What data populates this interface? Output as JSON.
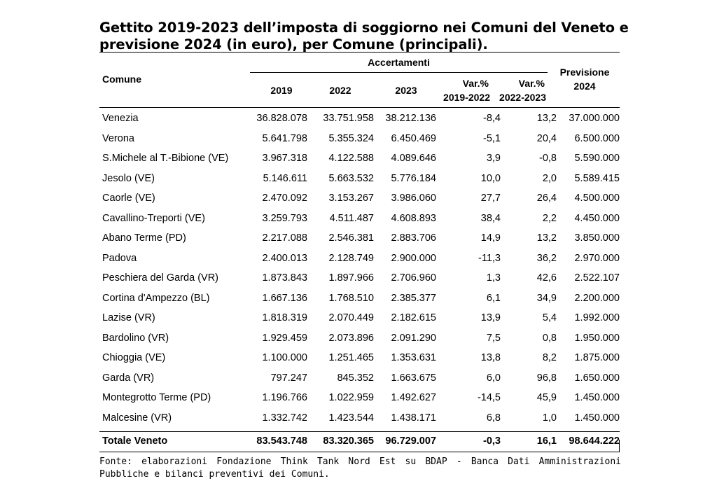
{
  "title": {
    "line1": "Gettito 2019-2023 dell’imposta di soggiorno nei Comuni del Veneto e",
    "line2": "previsione 2024 (in euro), per Comune (principali)."
  },
  "headers": {
    "comune": "Comune",
    "accertamenti": "Accertamenti",
    "y2019": "2019",
    "y2022": "2022",
    "y2023": "2023",
    "var1_line1": "Var.%",
    "var1_line2": "2019-2022",
    "var2_line1": "Var.%",
    "var2_line2": "2022-2023",
    "prev_line1": "Previsione",
    "prev_line2": "2024"
  },
  "rows": [
    {
      "comune": "Venezia",
      "y2019": "36.828.078",
      "y2022": "33.751.958",
      "y2023": "38.212.136",
      "var1": "-8,4",
      "var2": "13,2",
      "prev": "37.000.000"
    },
    {
      "comune": "Verona",
      "y2019": "5.641.798",
      "y2022": "5.355.324",
      "y2023": "6.450.469",
      "var1": "-5,1",
      "var2": "20,4",
      "prev": "6.500.000"
    },
    {
      "comune": "S.Michele al T.-Bibione (VE)",
      "y2019": "3.967.318",
      "y2022": "4.122.588",
      "y2023": "4.089.646",
      "var1": "3,9",
      "var2": "-0,8",
      "prev": "5.590.000"
    },
    {
      "comune": "Jesolo (VE)",
      "y2019": "5.146.611",
      "y2022": "5.663.532",
      "y2023": "5.776.184",
      "var1": "10,0",
      "var2": "2,0",
      "prev": "5.589.415"
    },
    {
      "comune": "Caorle (VE)",
      "y2019": "2.470.092",
      "y2022": "3.153.267",
      "y2023": "3.986.060",
      "var1": "27,7",
      "var2": "26,4",
      "prev": "4.500.000"
    },
    {
      "comune": "Cavallino-Treporti (VE)",
      "y2019": "3.259.793",
      "y2022": "4.511.487",
      "y2023": "4.608.893",
      "var1": "38,4",
      "var2": "2,2",
      "prev": "4.450.000"
    },
    {
      "comune": "Abano Terme (PD)",
      "y2019": "2.217.088",
      "y2022": "2.546.381",
      "y2023": "2.883.706",
      "var1": "14,9",
      "var2": "13,2",
      "prev": "3.850.000"
    },
    {
      "comune": "Padova",
      "y2019": "2.400.013",
      "y2022": "2.128.749",
      "y2023": "2.900.000",
      "var1": "-11,3",
      "var2": "36,2",
      "prev": "2.970.000"
    },
    {
      "comune": "Peschiera del Garda (VR)",
      "y2019": "1.873.843",
      "y2022": "1.897.966",
      "y2023": "2.706.960",
      "var1": "1,3",
      "var2": "42,6",
      "prev": "2.522.107"
    },
    {
      "comune": "Cortina d'Ampezzo (BL)",
      "y2019": "1.667.136",
      "y2022": "1.768.510",
      "y2023": "2.385.377",
      "var1": "6,1",
      "var2": "34,9",
      "prev": "2.200.000"
    },
    {
      "comune": "Lazise (VR)",
      "y2019": "1.818.319",
      "y2022": "2.070.449",
      "y2023": "2.182.615",
      "var1": "13,9",
      "var2": "5,4",
      "prev": "1.992.000"
    },
    {
      "comune": "Bardolino (VR)",
      "y2019": "1.929.459",
      "y2022": "2.073.896",
      "y2023": "2.091.290",
      "var1": "7,5",
      "var2": "0,8",
      "prev": "1.950.000"
    },
    {
      "comune": "Chioggia (VE)",
      "y2019": "1.100.000",
      "y2022": "1.251.465",
      "y2023": "1.353.631",
      "var1": "13,8",
      "var2": "8,2",
      "prev": "1.875.000"
    },
    {
      "comune": "Garda (VR)",
      "y2019": "797.247",
      "y2022": "845.352",
      "y2023": "1.663.675",
      "var1": "6,0",
      "var2": "96,8",
      "prev": "1.650.000"
    },
    {
      "comune": "Montegrotto Terme (PD)",
      "y2019": "1.196.766",
      "y2022": "1.022.959",
      "y2023": "1.492.627",
      "var1": "-14,5",
      "var2": "45,9",
      "prev": "1.450.000"
    },
    {
      "comune": "Malcesine (VR)",
      "y2019": "1.332.742",
      "y2022": "1.423.544",
      "y2023": "1.438.171",
      "var1": "6,8",
      "var2": "1,0",
      "prev": "1.450.000"
    }
  ],
  "total": {
    "comune": "Totale Veneto",
    "y2019": "83.543.748",
    "y2022": "83.320.365",
    "y2023": "96.729.007",
    "var1": "-0,3",
    "var2": "16,1",
    "prev": "98.644.222"
  },
  "note": "Fonte: elaborazioni Fondazione Think Tank Nord Est su BDAP - Banca Dati Amministrazioni Pubbliche e bilanci preventivi dei Comuni."
}
